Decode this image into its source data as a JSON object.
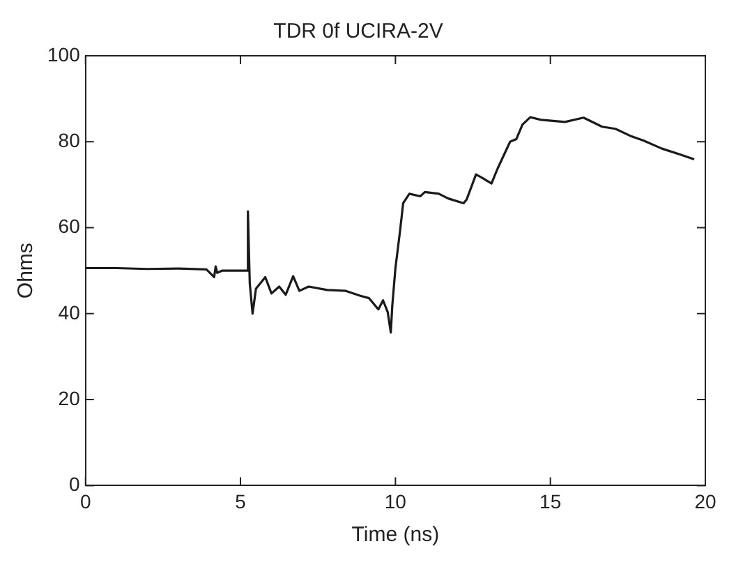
{
  "chart_data": {
    "type": "line",
    "title": "TDR 0f UCIRA-2V",
    "xlabel": "Time (ns)",
    "ylabel": "Ohms",
    "xlim": [
      0,
      20
    ],
    "ylim": [
      0,
      100
    ],
    "xticks": [
      0,
      5,
      10,
      15,
      20
    ],
    "yticks": [
      0,
      20,
      40,
      60,
      80,
      100
    ],
    "grid": false,
    "legend": false,
    "marker": "none",
    "line_style": "solid",
    "series": [
      {
        "color": "#1a1a1a",
        "x": [
          0,
          1,
          2,
          3,
          3.9,
          4.15,
          4.2,
          4.25,
          4.4,
          5.0,
          5.22,
          5.24,
          5.3,
          5.39,
          5.5,
          5.8,
          6.0,
          6.25,
          6.46,
          6.7,
          6.9,
          7.2,
          7.8,
          8.4,
          8.85,
          9.15,
          9.45,
          9.6,
          9.75,
          9.85,
          9.9,
          10.0,
          10.15,
          10.25,
          10.45,
          10.8,
          10.95,
          11.4,
          11.7,
          12.2,
          12.3,
          12.6,
          12.8,
          13.1,
          13.3,
          13.7,
          13.9,
          14.1,
          14.35,
          14.7,
          15.47,
          16.07,
          16.67,
          17.1,
          17.57,
          18.0,
          18.6,
          19.2,
          19.64
        ],
        "values": [
          50.6,
          50.6,
          50.4,
          50.5,
          50.3,
          48.5,
          51,
          49.5,
          50,
          50,
          50,
          63.8,
          47,
          40,
          45.8,
          48.5,
          44.7,
          46.3,
          44.4,
          48.7,
          45.3,
          46.3,
          45.5,
          45.3,
          44.2,
          43.6,
          41,
          43.1,
          40.4,
          35.6,
          42,
          50.6,
          59.3,
          65.7,
          67.9,
          67.3,
          68.3,
          67.9,
          66.8,
          65.7,
          66.6,
          72.4,
          71.6,
          70.3,
          73.8,
          80,
          80.6,
          84,
          85.7,
          85.1,
          84.6,
          85.6,
          83.5,
          83,
          81.4,
          80.3,
          78.4,
          77,
          75.9
        ]
      }
    ]
  }
}
